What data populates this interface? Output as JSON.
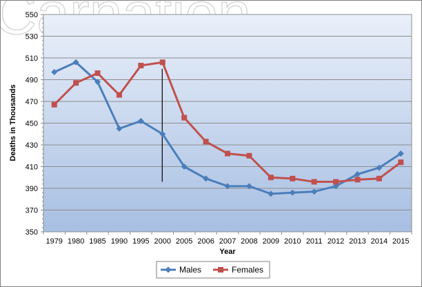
{
  "chart_data": {
    "type": "line",
    "categories": [
      "1979",
      "1980",
      "1985",
      "1990",
      "1995",
      "2000",
      "2005",
      "2006",
      "2007",
      "2008",
      "2009",
      "2010",
      "2011",
      "2012",
      "2013",
      "2014",
      "2015"
    ],
    "series": [
      {
        "name": "Males",
        "color": "#4a7ebb",
        "marker": "diamond",
        "values": [
          497,
          506,
          488,
          445,
          452,
          440,
          410,
          399,
          392,
          392,
          385,
          386,
          387,
          392,
          403,
          409,
          422
        ]
      },
      {
        "name": "Females",
        "color": "#c0504d",
        "marker": "square",
        "values": [
          467,
          487,
          496,
          476,
          503,
          506,
          455,
          433,
          422,
          420,
          400,
          399,
          396,
          396,
          398,
          399,
          414
        ]
      }
    ],
    "xlabel": "Year",
    "ylabel": "Deaths in Thousands",
    "ylim": [
      350,
      550
    ],
    "yticks": [
      350,
      370,
      390,
      410,
      430,
      450,
      470,
      490,
      510,
      530,
      550
    ],
    "grid": true,
    "legend_position": "bottom",
    "annotation_line": {
      "category": "2000",
      "y_from": 396,
      "y_to": 500
    },
    "watermark_text": "Carnation"
  }
}
